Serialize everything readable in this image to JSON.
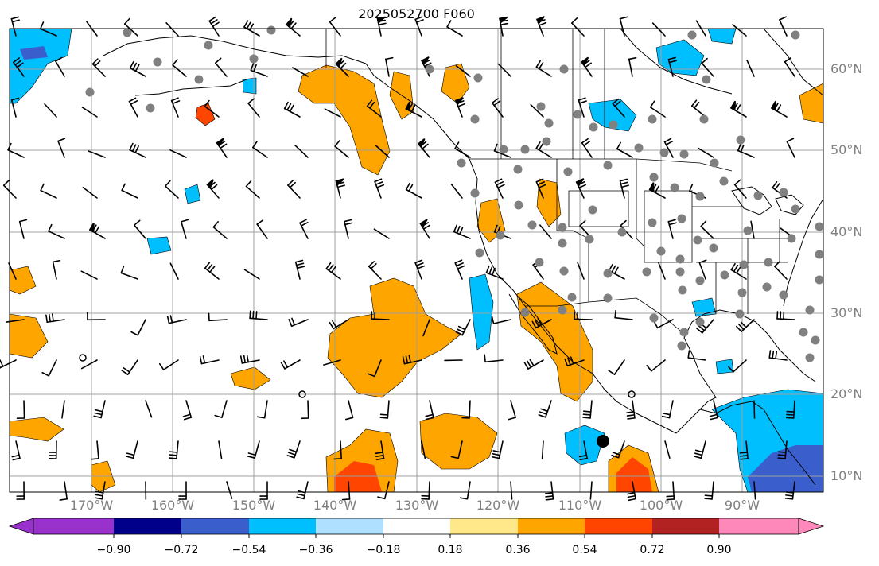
{
  "title": "2025052700 F060",
  "lon_labels": [
    "170°W",
    "160°W",
    "150°W",
    "140°W",
    "130°W",
    "120°W",
    "110°W",
    "100°W",
    "90°W"
  ],
  "lat_labels": [
    "60°N",
    "50°N",
    "40°N",
    "30°N",
    "20°N",
    "10°N"
  ],
  "colorbar": {
    "ticks": [
      "−0.90",
      "−0.72",
      "−0.54",
      "−0.36",
      "−0.18",
      "0.18",
      "0.36",
      "0.54",
      "0.72",
      "0.90"
    ],
    "colors": [
      "#9932cc",
      "#00008b",
      "#3a5fcd",
      "#00bfff",
      "#b0e0ff",
      "#ffffff",
      "#ffe88a",
      "#ffa500",
      "#ff4500",
      "#b22222",
      "#ff88bb"
    ]
  },
  "colors": {
    "grid": "#a0a0a0",
    "coast": "#000000",
    "station": "#808080",
    "positive": "#ffa500",
    "strong_positive": "#ff4500",
    "negative": "#00bfff",
    "strong_negative": "#3a5fcd"
  }
}
